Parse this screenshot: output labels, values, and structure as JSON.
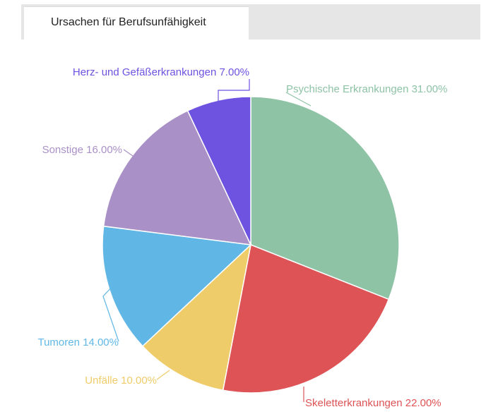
{
  "tab": {
    "label": "Ursachen für Berufsunfähigkeit"
  },
  "chart_data": {
    "type": "pie",
    "title": "",
    "start_angle_deg": 0,
    "direction": "clockwise",
    "slices": [
      {
        "name": "Psychische Erkrankungen",
        "value": 31.0,
        "label": "Psychische Erkrankungen 31.00%",
        "color": "#8ec3a6"
      },
      {
        "name": "Skeletterkrankungen",
        "value": 22.0,
        "label": "Skeletterkrankungen 22.00%",
        "color": "#dd5356"
      },
      {
        "name": "Unfälle",
        "value": 10.0,
        "label": "Unfälle 10.00%",
        "color": "#efcc6a"
      },
      {
        "name": "Tumoren",
        "value": 14.0,
        "label": "Tumoren 14.00%",
        "color": "#60b7e6"
      },
      {
        "name": "Sonstige",
        "value": 16.0,
        "label": "Sonstige 16.00%",
        "color": "#a990c6"
      },
      {
        "name": "Herz- und Gefäßerkrankungen",
        "value": 7.0,
        "label": "Herz- und Gefäßerkrankungen 7.00%",
        "color": "#6e52e0"
      }
    ]
  }
}
